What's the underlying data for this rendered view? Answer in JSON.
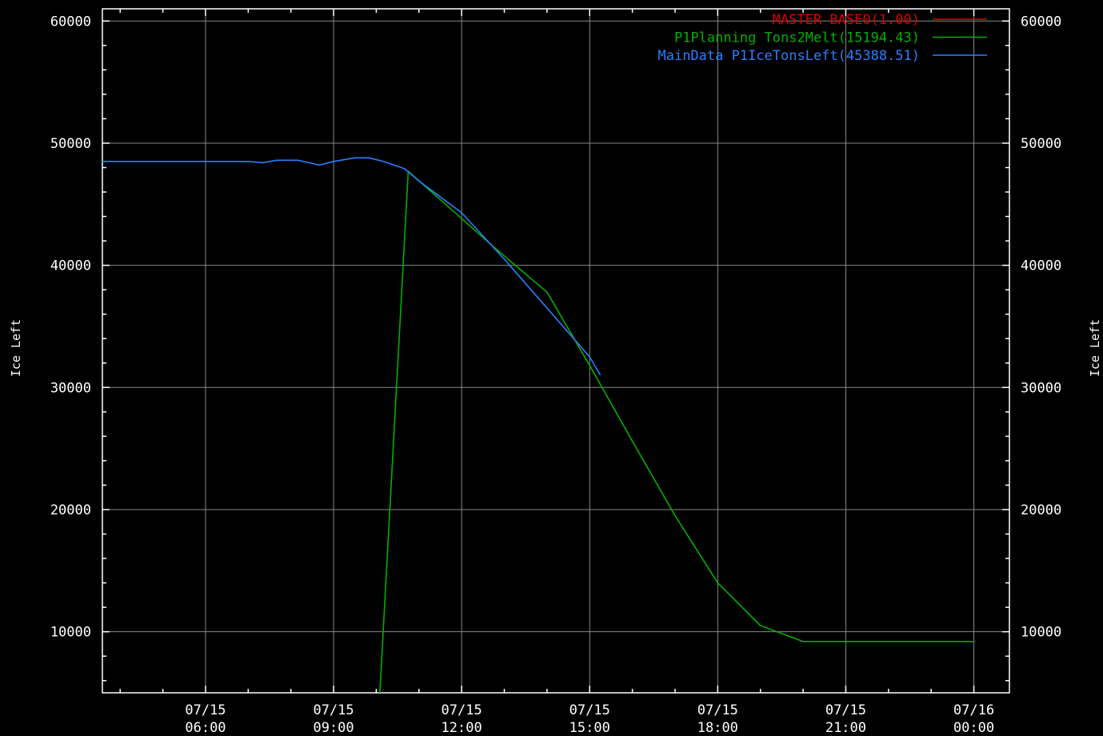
{
  "chart_data": {
    "type": "line",
    "ylabel_left": "Ice Left",
    "ylabel_right": "Ice Left",
    "xlabel": "",
    "title": "",
    "ylim": [
      5000,
      61000
    ],
    "xlim": [
      "07/15 03:35",
      "07/16 00:50"
    ],
    "grid": true,
    "legend_position": "top-right",
    "background": "#000000",
    "frame_color": "#ffffff",
    "grid_color": "#8a8a8a",
    "yticks": [
      {
        "value": 10000,
        "label": "10000"
      },
      {
        "value": 20000,
        "label": "20000"
      },
      {
        "value": 30000,
        "label": "30000"
      },
      {
        "value": 40000,
        "label": "40000"
      },
      {
        "value": 50000,
        "label": "50000"
      },
      {
        "value": 60000,
        "label": "60000"
      }
    ],
    "xticks": [
      {
        "value": "07/15 06:00",
        "date": "07/15",
        "time": "06:00"
      },
      {
        "value": "07/15 09:00",
        "date": "07/15",
        "time": "09:00"
      },
      {
        "value": "07/15 12:00",
        "date": "07/15",
        "time": "12:00"
      },
      {
        "value": "07/15 15:00",
        "date": "07/15",
        "time": "15:00"
      },
      {
        "value": "07/15 18:00",
        "date": "07/15",
        "time": "18:00"
      },
      {
        "value": "07/15 21:00",
        "date": "07/15",
        "time": "21:00"
      },
      {
        "value": "07/16 00:00",
        "date": "07/16",
        "time": "00:00"
      }
    ],
    "series": [
      {
        "name": "MASTER BASE0(1.00)",
        "color": "#dd0000",
        "points": []
      },
      {
        "name": "P1Planning Tons2Melt(15194.43)",
        "color": "#00b000",
        "points": [
          {
            "x": "07/15 10:05",
            "y": 5000
          },
          {
            "x": "07/15 10:45",
            "y": 47700
          },
          {
            "x": "07/15 12:45",
            "y": 41500
          },
          {
            "x": "07/15 14:00",
            "y": 37800
          },
          {
            "x": "07/15 15:00",
            "y": 31800
          },
          {
            "x": "07/15 16:00",
            "y": 25600
          },
          {
            "x": "07/15 17:00",
            "y": 19500
          },
          {
            "x": "07/15 18:00",
            "y": 14000
          },
          {
            "x": "07/15 19:00",
            "y": 10500
          },
          {
            "x": "07/15 20:00",
            "y": 9200
          },
          {
            "x": "07/15 21:00",
            "y": 9200
          },
          {
            "x": "07/15 22:00",
            "y": 9200
          },
          {
            "x": "07/16 00:00",
            "y": 9200
          }
        ]
      },
      {
        "name": "MainData P1IceTonsLeft(45388.51)",
        "color": "#2a7fff",
        "points": [
          {
            "x": "07/15 03:35",
            "y": 48500
          },
          {
            "x": "07/15 05:00",
            "y": 48500
          },
          {
            "x": "07/15 06:00",
            "y": 48500
          },
          {
            "x": "07/15 07:00",
            "y": 48500
          },
          {
            "x": "07/15 07:20",
            "y": 48400
          },
          {
            "x": "07/15 07:40",
            "y": 48600
          },
          {
            "x": "07/15 08:10",
            "y": 48600
          },
          {
            "x": "07/15 08:40",
            "y": 48200
          },
          {
            "x": "07/15 09:00",
            "y": 48500
          },
          {
            "x": "07/15 09:30",
            "y": 48800
          },
          {
            "x": "07/15 09:50",
            "y": 48800
          },
          {
            "x": "07/15 10:10",
            "y": 48500
          },
          {
            "x": "07/15 10:40",
            "y": 47900
          },
          {
            "x": "07/15 11:00",
            "y": 46900
          },
          {
            "x": "07/15 12:00",
            "y": 44300
          },
          {
            "x": "07/15 13:00",
            "y": 40500
          },
          {
            "x": "07/15 14:00",
            "y": 36500
          },
          {
            "x": "07/15 15:00",
            "y": 32500
          },
          {
            "x": "07/15 15:15",
            "y": 31000
          }
        ]
      }
    ]
  }
}
